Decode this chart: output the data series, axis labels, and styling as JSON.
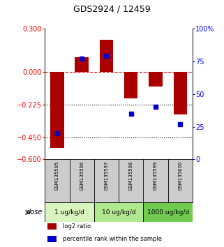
{
  "title": "GDS2924 / 12459",
  "samples": [
    "GSM135595",
    "GSM135596",
    "GSM135597",
    "GSM135598",
    "GSM135599",
    "GSM135600"
  ],
  "log2_ratio": [
    -0.52,
    0.1,
    0.22,
    -0.18,
    -0.1,
    -0.29
  ],
  "percentile_rank": [
    20,
    77,
    79,
    35,
    40,
    27
  ],
  "ylim_left": [
    -0.6,
    0.3
  ],
  "ylim_right": [
    0,
    100
  ],
  "yticks_left": [
    0.3,
    0,
    -0.225,
    -0.45,
    -0.6
  ],
  "yticks_right": [
    100,
    75,
    50,
    25,
    0
  ],
  "hlines_dotted": [
    -0.225,
    -0.45
  ],
  "bar_color": "#aa0000",
  "dot_color": "#0000cc",
  "bar_width": 0.55,
  "dot_size": 22,
  "background_color": "#ffffff",
  "sample_bg": "#cccccc",
  "dose_groups": [
    {
      "label": "1 ug/kg/d",
      "samples": [
        0,
        1
      ],
      "color": "#d8f5c0"
    },
    {
      "label": "10 ug/kg/d",
      "samples": [
        2,
        3
      ],
      "color": "#b0e890"
    },
    {
      "label": "1000 ug/kg/d",
      "samples": [
        4,
        5
      ],
      "color": "#70cc50"
    }
  ],
  "legend_items": [
    {
      "color": "#aa0000",
      "label": "log2 ratio"
    },
    {
      "color": "#0000cc",
      "label": "percentile rank within the sample"
    }
  ],
  "title_fontsize": 9,
  "axis_fontsize": 7,
  "sample_fontsize": 5,
  "dose_fontsize": 6.5,
  "legend_fontsize": 6
}
